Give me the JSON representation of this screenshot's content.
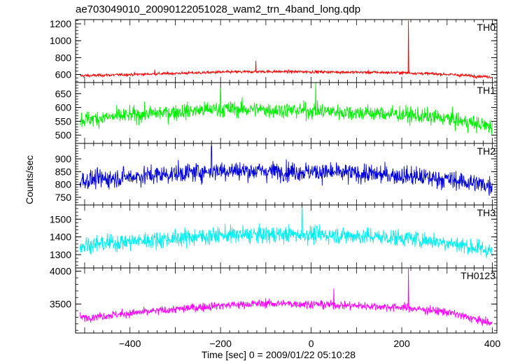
{
  "chart_data": {
    "type": "line",
    "title": "ae703049010_20090122051028_wam2_trn_4band_long.qdp",
    "xlabel": "Time [sec] 0 = 2009/01/22 05:10:28",
    "ylabel": "Counts/sec",
    "xlim": [
      -520,
      410
    ],
    "xticks": [
      -400,
      -200,
      0,
      200,
      400
    ],
    "x_tick_labels": [
      "−400",
      "−200",
      "0",
      "200",
      "400"
    ],
    "x_range_data": [
      -510,
      400
    ],
    "panels": [
      {
        "name": "TH0",
        "color": "#ff0000",
        "ylim": [
          505,
          1250
        ],
        "yticks": [
          600,
          800,
          1000,
          1200
        ],
        "y_tick_labels": [
          "600",
          "800",
          "1000",
          "1200"
        ],
        "trend": [
          [
            -510,
            585
          ],
          [
            -400,
            600
          ],
          [
            -200,
            628
          ],
          [
            -100,
            635
          ],
          [
            0,
            632
          ],
          [
            200,
            622
          ],
          [
            300,
            602
          ],
          [
            400,
            570
          ]
        ],
        "noise": 15,
        "spikes": [
          [
            215,
            1240
          ],
          [
            -122,
            762
          ],
          [
            -345,
            658
          ]
        ]
      },
      {
        "name": "TH1",
        "color": "#00ee00",
        "ylim": [
          470,
          690
        ],
        "yticks": [
          500,
          550,
          600,
          650
        ],
        "y_tick_labels": [
          "500",
          "550",
          "600",
          "650"
        ],
        "trend": [
          [
            -510,
            555
          ],
          [
            -400,
            572
          ],
          [
            -200,
            595
          ],
          [
            0,
            588
          ],
          [
            200,
            575
          ],
          [
            300,
            560
          ],
          [
            400,
            530
          ]
        ],
        "noise": 25,
        "spikes": [
          [
            10,
            692
          ],
          [
            -200,
            668
          ]
        ]
      },
      {
        "name": "TH2",
        "color": "#0000dd",
        "ylim": [
          720,
          960
        ],
        "yticks": [
          750,
          800,
          850,
          900
        ],
        "y_tick_labels": [
          "750",
          "800",
          "850",
          "900"
        ],
        "trend": [
          [
            -510,
            815
          ],
          [
            -400,
            830
          ],
          [
            -200,
            855
          ],
          [
            0,
            850
          ],
          [
            200,
            835
          ],
          [
            300,
            820
          ],
          [
            400,
            795
          ]
        ],
        "noise": 32,
        "spikes": [
          [
            -220,
            950
          ]
        ]
      },
      {
        "name": "TH3",
        "color": "#00eeee",
        "ylim": [
          1225,
          1580
        ],
        "yticks": [
          1300,
          1400,
          1500
        ],
        "y_tick_labels": [
          "1300",
          "1400",
          "1500"
        ],
        "trend": [
          [
            -510,
            1350
          ],
          [
            -400,
            1375
          ],
          [
            -200,
            1410
          ],
          [
            0,
            1415
          ],
          [
            200,
            1395
          ],
          [
            300,
            1370
          ],
          [
            400,
            1320
          ]
        ],
        "noise": 42,
        "spikes": [
          [
            -20,
            1560
          ]
        ]
      },
      {
        "name": "TH0123",
        "color": "#ff00ff",
        "ylim": [
          3060,
          4050
        ],
        "yticks": [
          3500,
          4000
        ],
        "y_tick_labels": [
          "3500",
          "4000"
        ],
        "trend": [
          [
            -510,
            3290
          ],
          [
            -400,
            3360
          ],
          [
            -200,
            3480
          ],
          [
            -100,
            3510
          ],
          [
            0,
            3500
          ],
          [
            200,
            3450
          ],
          [
            300,
            3380
          ],
          [
            400,
            3200
          ]
        ],
        "noise": 55,
        "spikes": [
          [
            215,
            4040
          ],
          [
            50,
            3740
          ]
        ]
      }
    ],
    "grid": false,
    "legend": "none"
  }
}
